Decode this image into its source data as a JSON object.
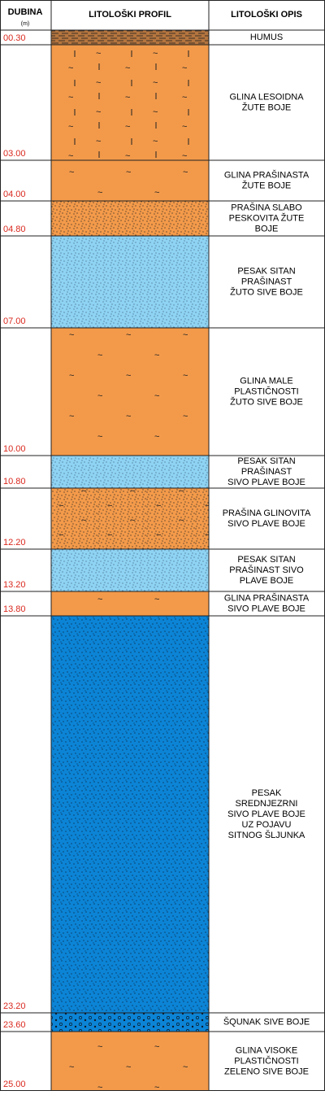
{
  "header": {
    "depth": "DUBINA",
    "depth_unit": "(m)",
    "profile": "LITOLOŠKI PROFIL",
    "description": "LITOLOŠKI OPIS"
  },
  "layers": [
    {
      "depth": "00.30",
      "description": [
        "HUMUS"
      ]
    },
    {
      "depth": "03.00",
      "description": [
        "GLINA LESOIDNA",
        "ŽUTE BOJE"
      ]
    },
    {
      "depth": "04.00",
      "description": [
        "GLINA PRAŠINASTA",
        "ŽUTE BOJE"
      ]
    },
    {
      "depth": "04.80",
      "description": [
        "PRAŠINA SLABO",
        "PESKOVITA ŽUTE",
        "BOJE"
      ]
    },
    {
      "depth": "07.00",
      "description": [
        "PESAK SITAN",
        "PRAŠINAST",
        "ŽUTO SIVE BOJE"
      ]
    },
    {
      "depth": "10.00",
      "description": [
        "GLINA MALE",
        "PLASTIČNOSTI",
        "ŽUTO SIVE BOJE"
      ]
    },
    {
      "depth": "10.80",
      "description": [
        "PESAK SITAN",
        "PRAŠINAST",
        "SIVO PLAVE BOJE"
      ]
    },
    {
      "depth": "12.20",
      "description": [
        "PRAŠINA GLINOVITA",
        "SIVO PLAVE BOJE"
      ]
    },
    {
      "depth": "13.20",
      "description": [
        "PESAK SITAN",
        "PRAŠINAST SIVO",
        "PLAVE BOJE"
      ]
    },
    {
      "depth": "13.80",
      "description": [
        "GLINA PRAŠINASTA",
        "SIVO PLAVE BOJE"
      ]
    },
    {
      "depth": "23.20",
      "description": [
        "PESAK",
        "SREDNJEZRNI",
        "SIVO PLAVE BOJE",
        "UZ POJAVU",
        "SITNOG ŠLJUNKA"
      ]
    },
    {
      "depth": "23.60",
      "description": [
        "ŠQUNAK SIVE BOJE"
      ]
    },
    {
      "depth": "25.00",
      "description": [
        "GLINA VISOKE",
        "PLASTIČNOSTI",
        "ZELENO SIVE BOJE"
      ]
    }
  ]
}
